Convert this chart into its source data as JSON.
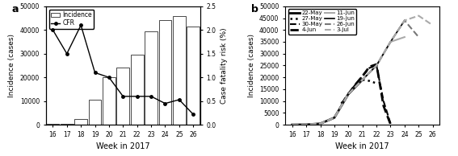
{
  "panel_a": {
    "bar_weeks": [
      16,
      17,
      18,
      19,
      20,
      21,
      22,
      23,
      24,
      25,
      26
    ],
    "bar_heights": [
      300,
      300,
      2500,
      10500,
      20000,
      24000,
      29500,
      39500,
      44000,
      46000,
      41500
    ],
    "cfr_weeks": [
      16,
      17,
      18,
      19,
      20,
      21,
      22,
      23,
      24,
      25,
      26
    ],
    "cfr_values": [
      2.0,
      1.5,
      2.1,
      1.1,
      1.0,
      0.6,
      0.6,
      0.6,
      0.45,
      0.53,
      0.22
    ],
    "ylim_left": [
      0,
      50000
    ],
    "ylim_right": [
      0,
      2.5
    ],
    "yticks_left": [
      0,
      10000,
      20000,
      30000,
      40000,
      50000
    ],
    "yticks_right": [
      0.0,
      0.5,
      1.0,
      1.5,
      2.0,
      2.5
    ],
    "ylabel_left": "Incidence (cases)",
    "ylabel_right": "Case fatality risk (%)",
    "xlabel": "Week in 2017",
    "xticks": [
      16,
      17,
      18,
      19,
      20,
      21,
      22,
      23,
      24,
      25,
      26
    ]
  },
  "panel_b": {
    "xlabel": "Week in 2017",
    "ylabel": "Incidence (cases)",
    "ylim": [
      0,
      50000
    ],
    "xlim": [
      15.5,
      26.5
    ],
    "xticks": [
      16,
      17,
      18,
      19,
      20,
      21,
      22,
      23,
      24,
      25,
      26
    ],
    "yticks": [
      0,
      5000,
      10000,
      15000,
      20000,
      25000,
      30000,
      35000,
      40000,
      45000,
      50000
    ],
    "forecast_lines": [
      {
        "label": "22-May",
        "linestyle": "solid",
        "color": "black",
        "linewidth": 2.0,
        "x": [
          16,
          17,
          18,
          19,
          20,
          21
        ],
        "y": [
          50,
          100,
          500,
          3000,
          13000,
          19000
        ]
      },
      {
        "label": "27-May",
        "linestyle": "dotted",
        "color": "black",
        "linewidth": 1.8,
        "x": [
          19.5,
          20,
          20.5,
          21,
          21.5,
          22
        ],
        "y": [
          9000,
          13000,
          16500,
          19000,
          18500,
          17500
        ]
      },
      {
        "label": "30-May",
        "linestyle": "dashed",
        "color": "black",
        "linewidth": 1.5,
        "x": [
          19.5,
          20,
          20.5,
          21,
          21.5,
          22,
          22.5,
          23
        ],
        "y": [
          9000,
          13000,
          17000,
          20500,
          24000,
          25000,
          10000,
          500
        ]
      },
      {
        "label": "4-Jun",
        "linestyle": "dashed",
        "color": "black",
        "linewidth": 2.0,
        "x": [
          20,
          20.5,
          21,
          21.5,
          22,
          22.5,
          23
        ],
        "y": [
          13000,
          17000,
          20500,
          24500,
          25500,
          8000,
          200
        ]
      },
      {
        "label": "11-Jun",
        "linestyle": "solid",
        "color": "#aaaaaa",
        "linewidth": 1.5,
        "x": [
          16,
          17,
          18,
          19,
          20,
          21,
          22,
          23,
          24
        ],
        "y": [
          50,
          100,
          500,
          3000,
          13000,
          19000,
          25000,
          35000,
          37000
        ]
      },
      {
        "label": "19-Jun",
        "linestyle": "solid",
        "color": "black",
        "linewidth": 1.2,
        "x": [
          16,
          17,
          18,
          19,
          20,
          21,
          22,
          23,
          24
        ],
        "y": [
          50,
          100,
          500,
          3000,
          13000,
          19000,
          25000,
          35000,
          44000
        ]
      },
      {
        "label": "26-Jun",
        "linestyle": "dashed",
        "color": "#777777",
        "linewidth": 1.5,
        "x": [
          16,
          17,
          18,
          19,
          20,
          21,
          22,
          23,
          24,
          25
        ],
        "y": [
          50,
          100,
          500,
          3000,
          13000,
          19000,
          25000,
          35000,
          44000,
          37000
        ]
      },
      {
        "label": "3-Jul",
        "linestyle": "dashed",
        "color": "#aaaaaa",
        "linewidth": 1.5,
        "x": [
          16,
          17,
          18,
          19,
          20,
          21,
          22,
          23,
          24,
          25,
          26
        ],
        "y": [
          50,
          100,
          500,
          3000,
          13000,
          19000,
          25000,
          35000,
          44000,
          46000,
          42000
        ]
      }
    ]
  }
}
